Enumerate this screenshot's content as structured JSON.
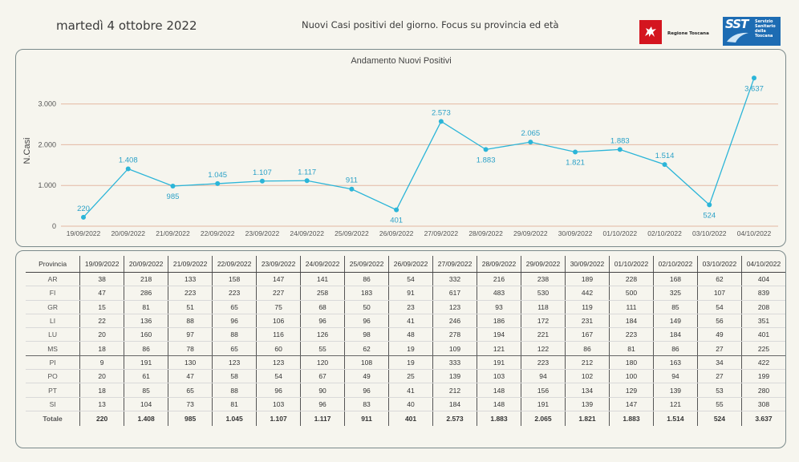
{
  "header": {
    "date": "martedì 4 ottobre 2022",
    "subtitle": "Nuovi Casi positivi del giorno. Focus su provincia ed età",
    "logo_regione": "Regione Toscana",
    "logo_sst_short": "SST",
    "logo_sst_text": "Servizio Sanitario della Toscana"
  },
  "colors": {
    "line": "#2bb5d8",
    "label": "#2ba1c7",
    "gridline": "#e3b8a3",
    "panel_border": "#7b8a8b",
    "background": "#f6f5ee"
  },
  "chart_data": {
    "type": "line",
    "title": "Andamento Nuovi Positivi",
    "xlabel": "",
    "ylabel": "N.Casi",
    "ylim": [
      0,
      3800
    ],
    "yticks": [
      0,
      1000,
      2000,
      3000
    ],
    "ytick_labels": [
      "0",
      "1.000",
      "2.000",
      "3.000"
    ],
    "grid": true,
    "x": [
      "19/09/2022",
      "20/09/2022",
      "21/09/2022",
      "22/09/2022",
      "23/09/2022",
      "24/09/2022",
      "25/09/2022",
      "26/09/2022",
      "27/09/2022",
      "28/09/2022",
      "29/09/2022",
      "30/09/2022",
      "01/10/2022",
      "02/10/2022",
      "03/10/2022",
      "04/10/2022"
    ],
    "series": [
      {
        "values": [
          220,
          1408,
          985,
          1045,
          1107,
          1117,
          911,
          401,
          2573,
          1883,
          2065,
          1821,
          1883,
          1514,
          524,
          3637
        ],
        "labels": [
          "220",
          "1.408",
          "985",
          "1.045",
          "1.107",
          "1.117",
          "911",
          "401",
          "2.573",
          "1.883",
          "2.065",
          "1.821",
          "1.883",
          "1.514",
          "524",
          "3.637"
        ],
        "label_pos": [
          "above",
          "above",
          "below",
          "above",
          "above",
          "above",
          "above",
          "below",
          "above",
          "below",
          "above",
          "below",
          "above",
          "above",
          "below",
          "below"
        ]
      }
    ]
  },
  "table": {
    "headers": [
      "Provincia",
      "19/09/2022",
      "20/09/2022",
      "21/09/2022",
      "22/09/2022",
      "23/09/2022",
      "24/09/2022",
      "25/09/2022",
      "26/09/2022",
      "27/09/2022",
      "28/09/2022",
      "29/09/2022",
      "30/09/2022",
      "01/10/2022",
      "02/10/2022",
      "03/10/2022",
      "04/10/2022"
    ],
    "rows": [
      [
        "AR",
        "38",
        "218",
        "133",
        "158",
        "147",
        "141",
        "86",
        "54",
        "332",
        "216",
        "238",
        "189",
        "228",
        "168",
        "62",
        "404"
      ],
      [
        "FI",
        "47",
        "286",
        "223",
        "223",
        "227",
        "258",
        "183",
        "91",
        "617",
        "483",
        "530",
        "442",
        "500",
        "325",
        "107",
        "839"
      ],
      [
        "GR",
        "15",
        "81",
        "51",
        "65",
        "75",
        "68",
        "50",
        "23",
        "123",
        "93",
        "118",
        "119",
        "111",
        "85",
        "54",
        "208"
      ],
      [
        "LI",
        "22",
        "136",
        "88",
        "96",
        "106",
        "96",
        "96",
        "41",
        "246",
        "186",
        "172",
        "231",
        "184",
        "149",
        "56",
        "351"
      ],
      [
        "LU",
        "20",
        "160",
        "97",
        "88",
        "116",
        "126",
        "98",
        "48",
        "278",
        "194",
        "221",
        "167",
        "223",
        "184",
        "49",
        "401"
      ],
      [
        "MS",
        "18",
        "86",
        "78",
        "65",
        "60",
        "55",
        "62",
        "19",
        "109",
        "121",
        "122",
        "86",
        "81",
        "86",
        "27",
        "225"
      ],
      [
        "PI",
        "9",
        "191",
        "130",
        "123",
        "123",
        "120",
        "108",
        "19",
        "333",
        "191",
        "223",
        "212",
        "180",
        "163",
        "34",
        "422"
      ],
      [
        "PO",
        "20",
        "61",
        "47",
        "58",
        "54",
        "67",
        "49",
        "25",
        "139",
        "103",
        "94",
        "102",
        "100",
        "94",
        "27",
        "199"
      ],
      [
        "PT",
        "18",
        "85",
        "65",
        "88",
        "96",
        "90",
        "96",
        "41",
        "212",
        "148",
        "156",
        "134",
        "129",
        "139",
        "53",
        "280"
      ],
      [
        "SI",
        "13",
        "104",
        "73",
        "81",
        "103",
        "96",
        "83",
        "40",
        "184",
        "148",
        "191",
        "139",
        "147",
        "121",
        "55",
        "308"
      ]
    ],
    "total": [
      "Totale",
      "220",
      "1.408",
      "985",
      "1.045",
      "1.107",
      "1.117",
      "911",
      "401",
      "2.573",
      "1.883",
      "2.065",
      "1.821",
      "1.883",
      "1.514",
      "524",
      "3.637"
    ]
  }
}
